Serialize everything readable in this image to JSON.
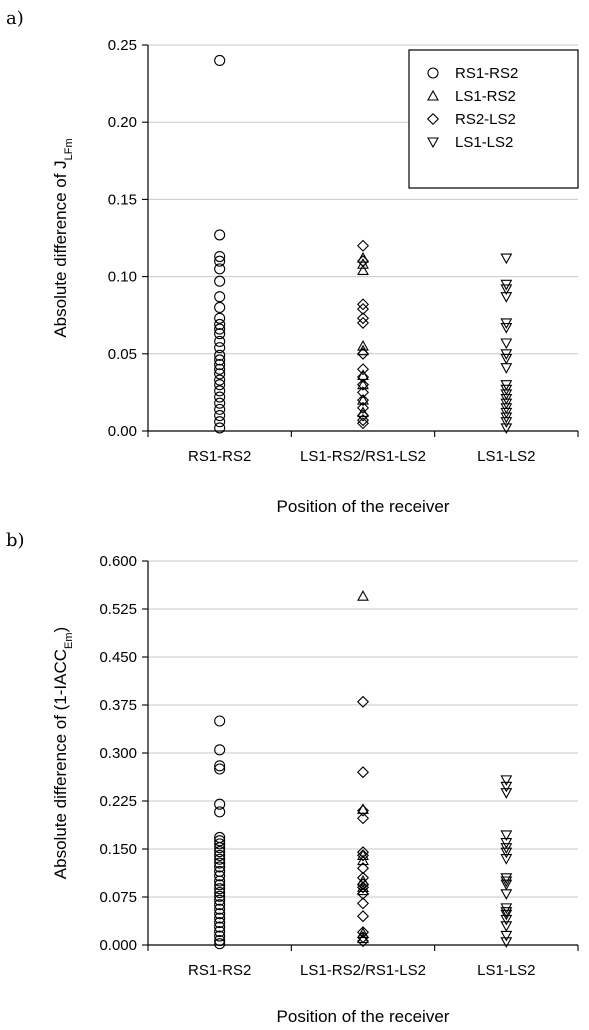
{
  "chart_data": [
    {
      "panel_label": "a)",
      "type": "scatter",
      "categories": [
        "RS1-RS2",
        "LS1-RS2/RS1-LS2",
        "LS1-LS2"
      ],
      "xlabel": "Position of the receiver",
      "ylabel_main": "Absolute difference of J",
      "ylabel_sub": "LFm",
      "ylim": [
        0,
        0.25
      ],
      "yticks": [
        0.0,
        0.05,
        0.1,
        0.15,
        0.2,
        0.25
      ],
      "ytick_labels": [
        "0.00",
        "0.05",
        "0.10",
        "0.15",
        "0.20",
        "0.25"
      ],
      "grid": true,
      "legend": "top-right",
      "series": [
        {
          "name": "RS1-RS2",
          "marker": "circle",
          "category": "RS1-RS2",
          "values": [
            0.24,
            0.127,
            0.113,
            0.11,
            0.105,
            0.097,
            0.087,
            0.08,
            0.073,
            0.069,
            0.066,
            0.063,
            0.058,
            0.054,
            0.049,
            0.046,
            0.043,
            0.04,
            0.037,
            0.033,
            0.03,
            0.026,
            0.022,
            0.018,
            0.014,
            0.01,
            0.006,
            0.002
          ]
        },
        {
          "name": "LS1-RS2",
          "marker": "triangle-up",
          "category": "LS1-RS2/RS1-LS2",
          "values": [
            0.112,
            0.108,
            0.104,
            0.055,
            0.052,
            0.036,
            0.03,
            0.02,
            0.012
          ]
        },
        {
          "name": "RS2-LS2",
          "marker": "diamond",
          "category": "LS1-RS2/RS1-LS2",
          "values": [
            0.12,
            0.11,
            0.082,
            0.079,
            0.073,
            0.07,
            0.05,
            0.04,
            0.035,
            0.03,
            0.025,
            0.02,
            0.015,
            0.01,
            0.007,
            0.005
          ]
        },
        {
          "name": "LS1-LS2",
          "marker": "triangle-down",
          "category": "LS1-LS2",
          "values": [
            0.112,
            0.095,
            0.092,
            0.087,
            0.07,
            0.067,
            0.057,
            0.05,
            0.047,
            0.041,
            0.03,
            0.027,
            0.024,
            0.021,
            0.018,
            0.015,
            0.012,
            0.009,
            0.006,
            0.002
          ]
        }
      ]
    },
    {
      "panel_label": "b)",
      "type": "scatter",
      "categories": [
        "RS1-RS2",
        "LS1-RS2/RS1-LS2",
        "LS1-LS2"
      ],
      "xlabel": "Position of the receiver",
      "ylabel_main": "Absolute difference of (1-IACC",
      "ylabel_sub": "Em",
      "ylabel_end": ")",
      "ylim": [
        0,
        0.6
      ],
      "yticks": [
        0.0,
        0.075,
        0.15,
        0.225,
        0.3,
        0.375,
        0.45,
        0.525,
        0.6
      ],
      "ytick_labels": [
        "0.000",
        "0.075",
        "0.150",
        "0.225",
        "0.300",
        "0.375",
        "0.450",
        "0.525",
        "0.600"
      ],
      "grid": true,
      "series": [
        {
          "name": "RS1-RS2",
          "marker": "circle",
          "category": "RS1-RS2",
          "values": [
            0.35,
            0.305,
            0.28,
            0.275,
            0.22,
            0.208,
            0.168,
            0.163,
            0.158,
            0.152,
            0.146,
            0.14,
            0.134,
            0.128,
            0.122,
            0.115,
            0.108,
            0.1,
            0.094,
            0.088,
            0.082,
            0.076,
            0.07,
            0.063,
            0.056,
            0.049,
            0.042,
            0.035,
            0.028,
            0.021,
            0.014,
            0.007,
            0.002
          ]
        },
        {
          "name": "LS1-RS2",
          "marker": "triangle-up",
          "category": "LS1-RS2/RS1-LS2",
          "values": [
            0.545,
            0.212,
            0.14,
            0.132,
            0.1,
            0.09,
            0.085,
            0.018,
            0.01
          ]
        },
        {
          "name": "RS2-LS2",
          "marker": "diamond",
          "category": "LS1-RS2/RS1-LS2",
          "values": [
            0.38,
            0.27,
            0.21,
            0.198,
            0.145,
            0.14,
            0.12,
            0.105,
            0.095,
            0.09,
            0.08,
            0.065,
            0.045,
            0.02,
            0.012,
            0.006
          ]
        },
        {
          "name": "LS1-LS2",
          "marker": "triangle-down",
          "category": "LS1-LS2",
          "values": [
            0.258,
            0.248,
            0.238,
            0.172,
            0.16,
            0.152,
            0.145,
            0.135,
            0.105,
            0.1,
            0.095,
            0.08,
            0.058,
            0.052,
            0.048,
            0.04,
            0.03,
            0.015,
            0.005
          ]
        }
      ]
    }
  ]
}
